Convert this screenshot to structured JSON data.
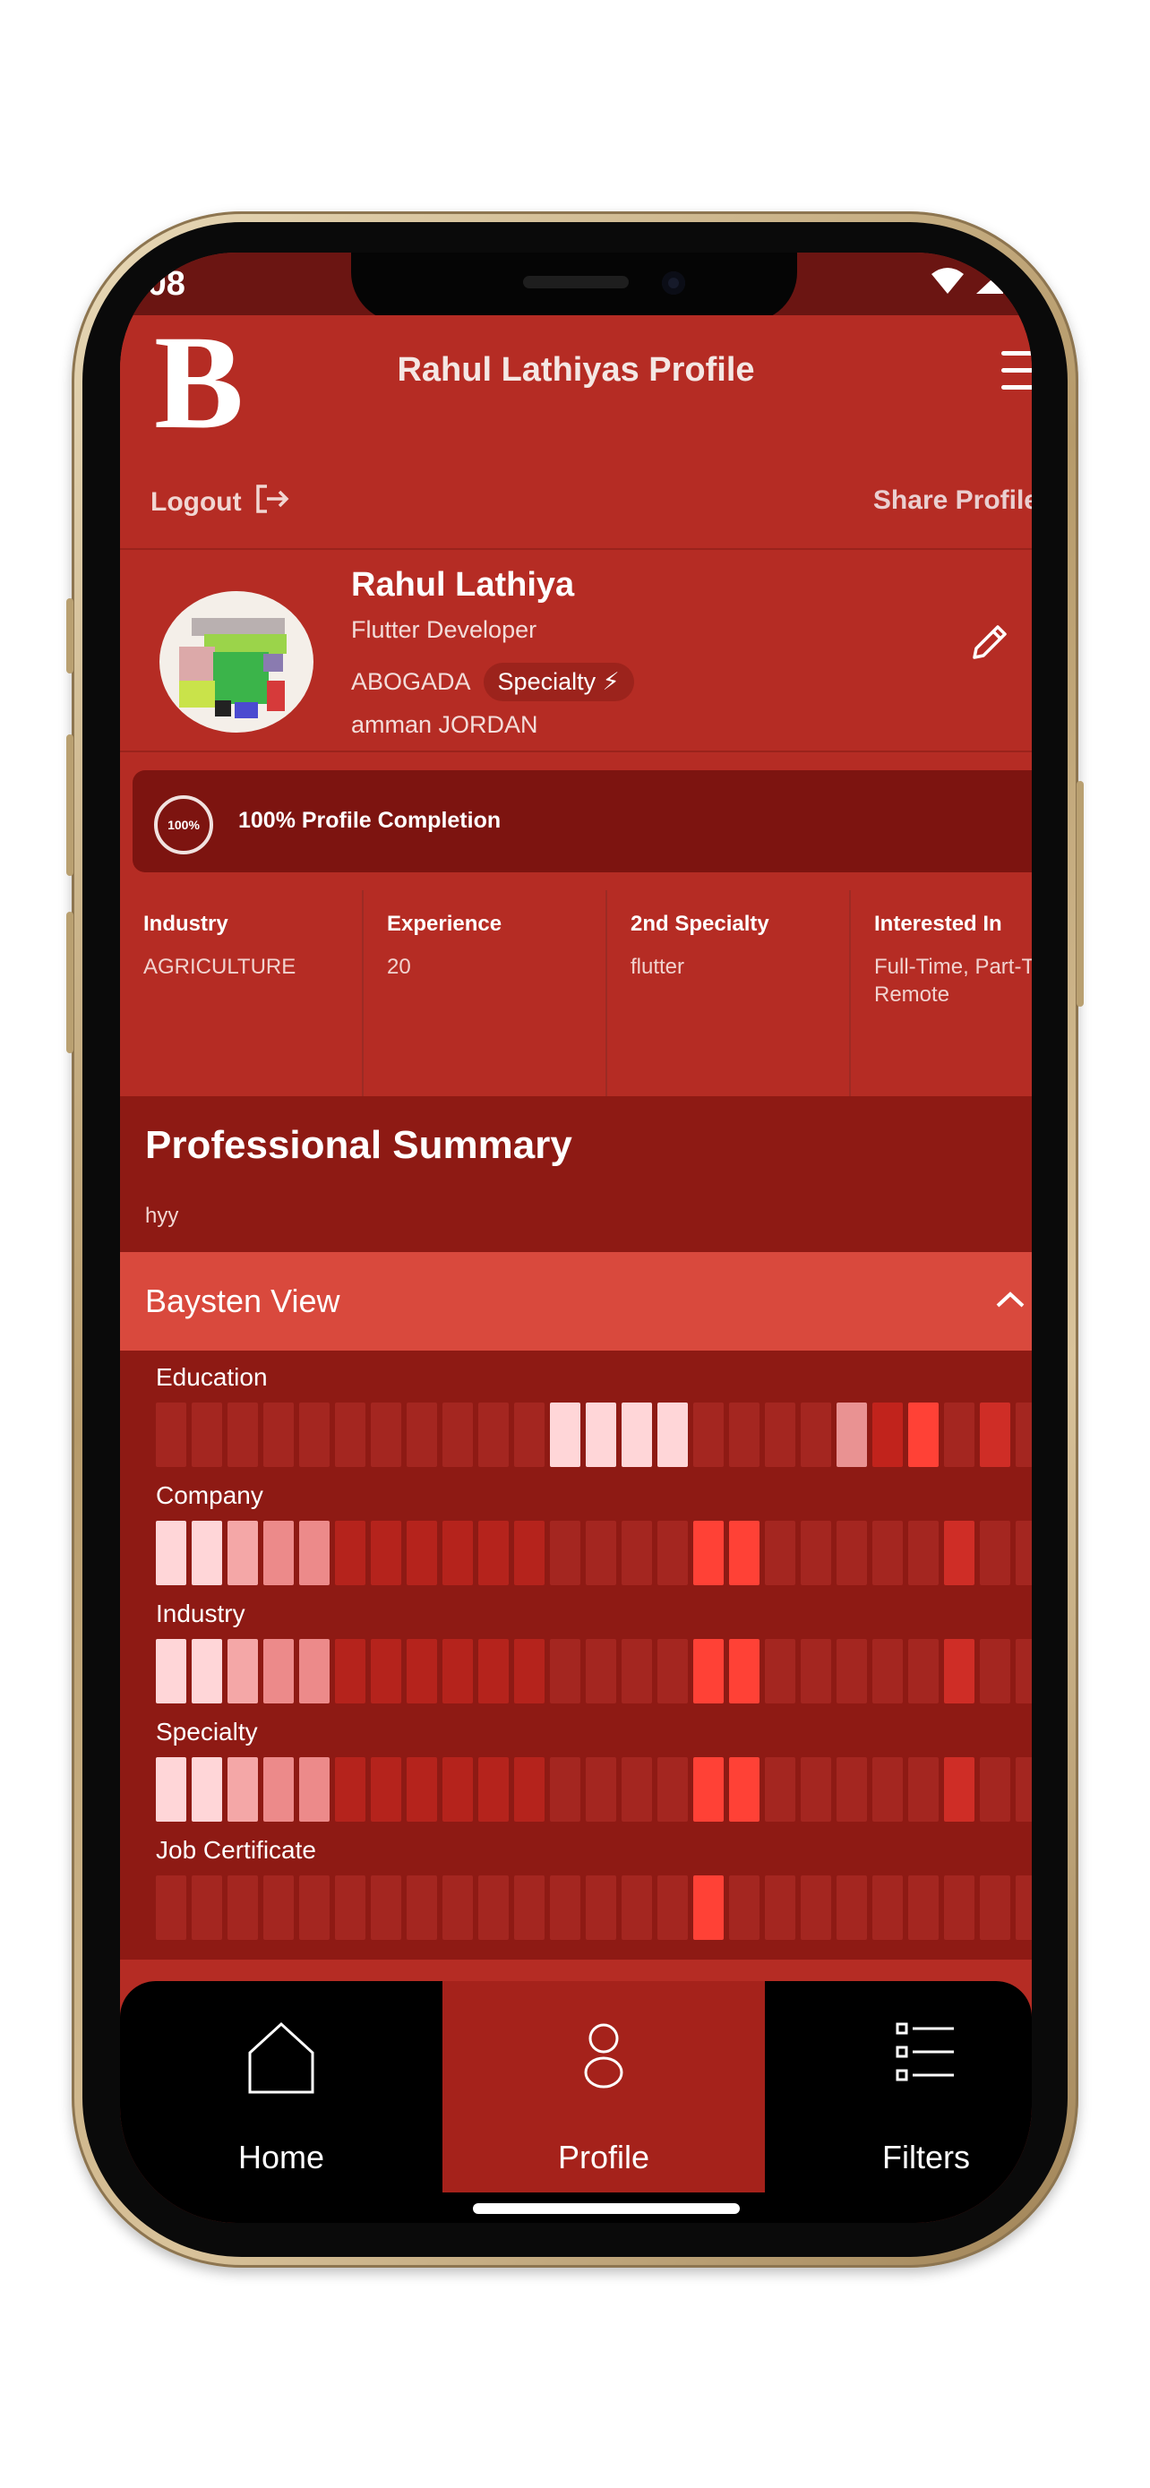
{
  "status_bar": {
    "time": ":08"
  },
  "header": {
    "logo": "B",
    "title": "Rahul Lathiyas Profile",
    "logout_label": "Logout",
    "share_label": "Share Profile"
  },
  "profile": {
    "name": "Rahul Lathiya",
    "role": "Flutter Developer",
    "company": "ABOGADA",
    "specialty_chip": "Specialty ⚡",
    "location": "amman JORDAN"
  },
  "completion": {
    "ring_text": "100%",
    "label": "100% Profile Completion"
  },
  "stats": [
    {
      "label": "Industry",
      "value": "AGRICULTURE"
    },
    {
      "label": "Experience",
      "value": "20"
    },
    {
      "label": "2nd Specialty",
      "value": "flutter"
    },
    {
      "label": "Interested In",
      "value": "Full-Time, Part-Time, Remote"
    }
  ],
  "summary": {
    "title": "Professional Summary",
    "text": "hyy"
  },
  "baysten": {
    "title": "Baysten View",
    "rows": [
      {
        "label": "Education",
        "cells": [
          "#a42620",
          "#a42620",
          "#a42620",
          "#a42620",
          "#a42620",
          "#a42620",
          "#a42620",
          "#a42620",
          "#a42620",
          "#a42620",
          "#a42620",
          "#ffd6d8",
          "#ffd6d8",
          "#ffd6d8",
          "#ffd6d8",
          "#a42620",
          "#a42620",
          "#a42620",
          "#a42620",
          "#e99292",
          "#c1231c",
          "#ff4136",
          "#a42620",
          "#cf2d26",
          "#a42620",
          "#a42620"
        ]
      },
      {
        "label": "Company",
        "cells": [
          "#ffd6d8",
          "#ffd6d8",
          "#f4a7a7",
          "#ec8a8a",
          "#ec8a8a",
          "#b5231c",
          "#b5231c",
          "#b5231c",
          "#b5231c",
          "#b5231c",
          "#b5231c",
          "#a42620",
          "#a42620",
          "#a42620",
          "#a42620",
          "#ff4136",
          "#ff4136",
          "#a42620",
          "#a42620",
          "#a42620",
          "#a42620",
          "#a42620",
          "#cf2d26",
          "#a42620",
          "#a42620",
          "#a42620"
        ]
      },
      {
        "label": "Industry",
        "cells": [
          "#ffd6d8",
          "#ffd6d8",
          "#f4a7a7",
          "#ec8a8a",
          "#ec8a8a",
          "#b5231c",
          "#b5231c",
          "#b5231c",
          "#b5231c",
          "#b5231c",
          "#b5231c",
          "#a42620",
          "#a42620",
          "#a42620",
          "#a42620",
          "#ff4136",
          "#ff4136",
          "#a42620",
          "#a42620",
          "#a42620",
          "#a42620",
          "#a42620",
          "#cf2d26",
          "#a42620",
          "#a42620",
          "#a42620"
        ]
      },
      {
        "label": "Specialty",
        "cells": [
          "#ffd6d8",
          "#ffd6d8",
          "#f4a7a7",
          "#ec8a8a",
          "#ec8a8a",
          "#b5231c",
          "#b5231c",
          "#b5231c",
          "#b5231c",
          "#b5231c",
          "#b5231c",
          "#a42620",
          "#a42620",
          "#a42620",
          "#a42620",
          "#ff4136",
          "#ff4136",
          "#a42620",
          "#a42620",
          "#a42620",
          "#a42620",
          "#a42620",
          "#cf2d26",
          "#a42620",
          "#a42620",
          "#a42620"
        ]
      },
      {
        "label": "Job Certificate",
        "cells": [
          "#a42620",
          "#a42620",
          "#a42620",
          "#a42620",
          "#a42620",
          "#a42620",
          "#a42620",
          "#a42620",
          "#a42620",
          "#a42620",
          "#a42620",
          "#a42620",
          "#a42620",
          "#a42620",
          "#a42620",
          "#ff4136",
          "#a42620",
          "#a42620",
          "#a42620",
          "#a42620",
          "#a42620",
          "#a42620",
          "#a42620",
          "#a42620",
          "#a42620",
          "#a42620"
        ]
      }
    ]
  },
  "bottom_nav": [
    {
      "label": "Home",
      "icon": "home-icon",
      "active": false
    },
    {
      "label": "Profile",
      "icon": "person-icon",
      "active": true
    },
    {
      "label": "Filters",
      "icon": "filter-list-icon",
      "active": false
    }
  ],
  "colors": {
    "primary": "#b52c24",
    "dark": "#8e1a14",
    "accent": "#d9493d",
    "completion_bg": "#7d1410",
    "nav_active": "#a5221b"
  }
}
